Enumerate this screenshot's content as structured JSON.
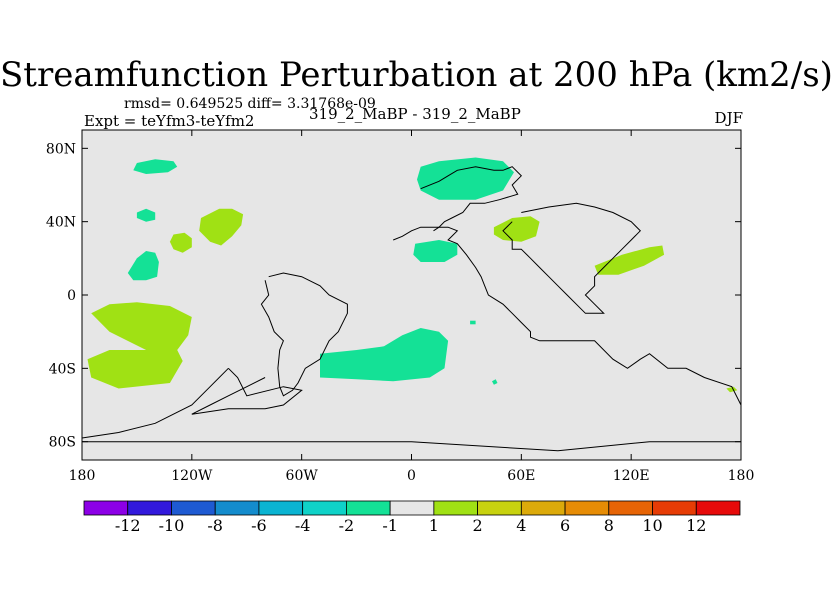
{
  "chart_data": {
    "type": "filled-contour map",
    "title": "Streamfunction Perturbation at 200 hPa (km2/s)",
    "stats_text": "rmsd= 0.649525 diff= 3.31768e-09",
    "left_label": "Expt = teYfm3-teYfm2",
    "center_label": "319_2_MaBP - 319_2_MaBP",
    "right_label": "DJF",
    "xlim": [
      -180,
      180
    ],
    "ylim": [
      -90,
      90
    ],
    "x_ticks": [
      {
        "value": -180,
        "label": "180"
      },
      {
        "value": -120,
        "label": "120W"
      },
      {
        "value": -60,
        "label": "60W"
      },
      {
        "value": 0,
        "label": "0"
      },
      {
        "value": 60,
        "label": "60E"
      },
      {
        "value": 120,
        "label": "120E"
      },
      {
        "value": 180,
        "label": "180"
      }
    ],
    "y_ticks": [
      {
        "value": 80,
        "label": "80N"
      },
      {
        "value": 40,
        "label": "40N"
      },
      {
        "value": 0,
        "label": "0"
      },
      {
        "value": -40,
        "label": "40S"
      },
      {
        "value": -80,
        "label": "80S"
      }
    ],
    "colorbar": {
      "colors": [
        "#8c00e6",
        "#3219dc",
        "#1e5ad2",
        "#148ccd",
        "#0ab4d2",
        "#0fd2c8",
        "#14e196",
        "#e6e6e6",
        "#a0e114",
        "#c8d20f",
        "#dcaa0a",
        "#e68c05",
        "#e66405",
        "#e63c05",
        "#e60a0a"
      ],
      "labels": [
        "-12",
        "-10",
        "-8",
        "-6",
        "-4",
        "-2",
        "-1",
        "1",
        "2",
        "4",
        "6",
        "8",
        "10",
        "12"
      ]
    },
    "background_color": "#e6e6e6",
    "regions": [
      {
        "name": "neg-north-pacific",
        "level": "-1 to -2",
        "color": "#14e196",
        "points": [
          [
            -150,
            72
          ],
          [
            -140,
            74
          ],
          [
            -130,
            73
          ],
          [
            -128,
            70
          ],
          [
            -133,
            67
          ],
          [
            -145,
            66
          ],
          [
            -152,
            68
          ]
        ]
      },
      {
        "name": "neg-pacific-west",
        "level": "-1 to -2",
        "color": "#14e196",
        "points": [
          [
            -150,
            45
          ],
          [
            -145,
            47
          ],
          [
            -140,
            45
          ],
          [
            -140,
            41
          ],
          [
            -145,
            40
          ],
          [
            -150,
            42
          ]
        ]
      },
      {
        "name": "pos-pacific-center",
        "level": "1 to 2",
        "color": "#a0e114",
        "points": [
          [
            -115,
            42
          ],
          [
            -105,
            47
          ],
          [
            -98,
            47
          ],
          [
            -92,
            44
          ],
          [
            -93,
            38
          ],
          [
            -98,
            32
          ],
          [
            -104,
            27
          ],
          [
            -110,
            29
          ],
          [
            -116,
            35
          ]
        ]
      },
      {
        "name": "pos-pacific-small",
        "level": "1 to 2",
        "color": "#a0e114",
        "points": [
          [
            -130,
            33
          ],
          [
            -124,
            34
          ],
          [
            -120,
            31
          ],
          [
            -120,
            26
          ],
          [
            -125,
            23
          ],
          [
            -130,
            25
          ],
          [
            -132,
            29
          ]
        ]
      },
      {
        "name": "neg-north-america",
        "level": "-1 to -2",
        "color": "#14e196",
        "points": [
          [
            -150,
            20
          ],
          [
            -145,
            24
          ],
          [
            -140,
            23
          ],
          [
            -138,
            18
          ],
          [
            -139,
            10
          ],
          [
            -145,
            8
          ],
          [
            -152,
            8
          ],
          [
            -155,
            12
          ]
        ]
      },
      {
        "name": "pos-south-pacific",
        "level": "1 to 2",
        "color": "#a0e114",
        "points": [
          [
            -175,
            -10
          ],
          [
            -165,
            -5
          ],
          [
            -150,
            -4
          ],
          [
            -132,
            -6
          ],
          [
            -120,
            -12
          ],
          [
            -122,
            -22
          ],
          [
            -128,
            -30
          ],
          [
            -125,
            -36
          ],
          [
            -132,
            -48
          ],
          [
            -160,
            -51
          ],
          [
            -175,
            -45
          ],
          [
            -177,
            -35
          ],
          [
            -165,
            -30
          ],
          [
            -145,
            -30
          ],
          [
            -165,
            -20
          ]
        ]
      },
      {
        "name": "neg-atlantic-south",
        "level": "-1 to -2",
        "color": "#14e196",
        "points": [
          [
            -50,
            -32
          ],
          [
            -30,
            -30
          ],
          [
            -15,
            -28
          ],
          [
            -5,
            -22
          ],
          [
            5,
            -18
          ],
          [
            15,
            -20
          ],
          [
            20,
            -25
          ],
          [
            18,
            -40
          ],
          [
            10,
            -45
          ],
          [
            -10,
            -47
          ],
          [
            -30,
            -46
          ],
          [
            -50,
            -45
          ]
        ]
      },
      {
        "name": "neg-eurasia-north",
        "level": "-1 to -2",
        "color": "#14e196",
        "points": [
          [
            5,
            70
          ],
          [
            15,
            73
          ],
          [
            35,
            75
          ],
          [
            50,
            73
          ],
          [
            56,
            67
          ],
          [
            50,
            57
          ],
          [
            35,
            52
          ],
          [
            15,
            52
          ],
          [
            5,
            57
          ],
          [
            3,
            63
          ]
        ]
      },
      {
        "name": "pos-asia",
        "level": "1 to 2",
        "color": "#a0e114",
        "points": [
          [
            45,
            37
          ],
          [
            55,
            42
          ],
          [
            65,
            43
          ],
          [
            70,
            40
          ],
          [
            68,
            32
          ],
          [
            60,
            29
          ],
          [
            50,
            30
          ],
          [
            45,
            33
          ]
        ]
      },
      {
        "name": "neg-africa-north",
        "level": "-1 to -2",
        "color": "#14e196",
        "points": [
          [
            2,
            28
          ],
          [
            15,
            30
          ],
          [
            25,
            28
          ],
          [
            25,
            22
          ],
          [
            18,
            18
          ],
          [
            5,
            18
          ],
          [
            1,
            22
          ]
        ]
      },
      {
        "name": "pos-indian-ocean",
        "level": "1 to 2",
        "color": "#a0e114",
        "points": [
          [
            100,
            16
          ],
          [
            115,
            22
          ],
          [
            130,
            26
          ],
          [
            137,
            27
          ],
          [
            138,
            22
          ],
          [
            127,
            16
          ],
          [
            113,
            11
          ],
          [
            102,
            11
          ]
        ]
      },
      {
        "name": "neg-southern-indian",
        "level": "-1 to -2",
        "color": "#14e196",
        "points": [
          [
            44,
            -47
          ],
          [
            46,
            -46
          ],
          [
            47,
            -48
          ],
          [
            45,
            -49
          ]
        ]
      },
      {
        "name": "neg-equator-speck",
        "level": "-1 to -2",
        "color": "#14e196",
        "points": [
          [
            32,
            -14
          ],
          [
            35,
            -14
          ],
          [
            35,
            -16
          ],
          [
            32,
            -16
          ]
        ]
      },
      {
        "name": "pos-far-east",
        "level": "1 to 2",
        "color": "#a0e114",
        "points": [
          [
            172,
            -51
          ],
          [
            176,
            -50
          ],
          [
            178,
            -52
          ],
          [
            174,
            -53
          ]
        ]
      }
    ],
    "lines": [
      {
        "name": "continent-outline-main",
        "points": [
          [
            -10,
            30
          ],
          [
            -5,
            32
          ],
          [
            0,
            35
          ],
          [
            5,
            37
          ],
          [
            20,
            37
          ],
          [
            25,
            35
          ],
          [
            20,
            30
          ],
          [
            25,
            28
          ],
          [
            30,
            22
          ],
          [
            35,
            15
          ],
          [
            38,
            10
          ],
          [
            40,
            5
          ],
          [
            42,
            0
          ],
          [
            50,
            -5
          ],
          [
            55,
            -10
          ],
          [
            60,
            -15
          ],
          [
            65,
            -20
          ],
          [
            65,
            -23
          ],
          [
            70,
            -25
          ],
          [
            100,
            -25
          ],
          [
            110,
            -35
          ],
          [
            118,
            -40
          ],
          [
            125,
            -35
          ],
          [
            130,
            -32
          ],
          [
            140,
            -40
          ],
          [
            150,
            -40
          ],
          [
            160,
            -45
          ],
          [
            175,
            -50
          ],
          [
            180,
            -60
          ],
          [
            180,
            -80
          ],
          [
            130,
            -80
          ],
          [
            80,
            -85
          ],
          [
            0,
            -80
          ],
          [
            -40,
            -80
          ],
          [
            -60,
            -80
          ],
          [
            -100,
            -80
          ],
          [
            -160,
            -80
          ],
          [
            -180,
            -80
          ]
        ]
      },
      {
        "name": "continent-outline-arctic",
        "points": [
          [
            5,
            58
          ],
          [
            15,
            62
          ],
          [
            20,
            65
          ],
          [
            25,
            68
          ],
          [
            35,
            70
          ],
          [
            45,
            68
          ],
          [
            50,
            68
          ],
          [
            55,
            70
          ],
          [
            60,
            65
          ],
          [
            55,
            60
          ],
          [
            58,
            55
          ],
          [
            48,
            52
          ],
          [
            40,
            50
          ],
          [
            32,
            50
          ],
          [
            28,
            45
          ],
          [
            22,
            42
          ],
          [
            18,
            40
          ],
          [
            15,
            37
          ],
          [
            12,
            35
          ]
        ]
      },
      {
        "name": "continent-outline-south-america",
        "points": [
          [
            -80,
            8
          ],
          [
            -78,
            0
          ],
          [
            -82,
            -5
          ],
          [
            -78,
            -12
          ],
          [
            -75,
            -20
          ],
          [
            -70,
            -25
          ],
          [
            -72,
            -30
          ],
          [
            -73,
            -40
          ],
          [
            -72,
            -50
          ],
          [
            -70,
            -55
          ],
          [
            -65,
            -52
          ],
          [
            -62,
            -48
          ],
          [
            -58,
            -40
          ],
          [
            -50,
            -35
          ],
          [
            -45,
            -25
          ],
          [
            -40,
            -20
          ],
          [
            -35,
            -10
          ],
          [
            -35,
            -5
          ],
          [
            -45,
            0
          ],
          [
            -50,
            5
          ],
          [
            -60,
            10
          ],
          [
            -70,
            12
          ],
          [
            -78,
            10
          ]
        ]
      },
      {
        "name": "continent-outline-north-america",
        "points": [
          [
            -100,
            -40
          ],
          [
            -110,
            -50
          ],
          [
            -120,
            -60
          ],
          [
            -140,
            -70
          ],
          [
            -160,
            -75
          ],
          [
            -180,
            -78
          ]
        ]
      },
      {
        "name": "continent-outline-asia-east",
        "points": [
          [
            60,
            45
          ],
          [
            75,
            48
          ],
          [
            90,
            50
          ],
          [
            100,
            48
          ],
          [
            110,
            45
          ],
          [
            120,
            40
          ],
          [
            125,
            35
          ],
          [
            120,
            30
          ],
          [
            115,
            25
          ],
          [
            110,
            20
          ],
          [
            105,
            15
          ],
          [
            100,
            10
          ],
          [
            100,
            5
          ],
          [
            95,
            0
          ],
          [
            100,
            -5
          ],
          [
            105,
            -10
          ],
          [
            95,
            -10
          ],
          [
            90,
            -5
          ],
          [
            85,
            0
          ],
          [
            80,
            5
          ],
          [
            75,
            10
          ],
          [
            70,
            15
          ],
          [
            65,
            20
          ],
          [
            60,
            25
          ],
          [
            55,
            25
          ],
          [
            55,
            30
          ],
          [
            50,
            35
          ],
          [
            55,
            40
          ]
        ]
      },
      {
        "name": "continent-outline-antarctic-inlet",
        "points": [
          [
            -100,
            -40
          ],
          [
            -95,
            -45
          ],
          [
            -90,
            -55
          ],
          [
            -70,
            -50
          ],
          [
            -60,
            -52
          ],
          [
            -70,
            -60
          ],
          [
            -80,
            -62
          ],
          [
            -100,
            -62
          ],
          [
            -120,
            -65
          ],
          [
            -110,
            -60
          ],
          [
            -100,
            -55
          ],
          [
            -90,
            -50
          ],
          [
            -80,
            -45
          ]
        ]
      }
    ]
  }
}
